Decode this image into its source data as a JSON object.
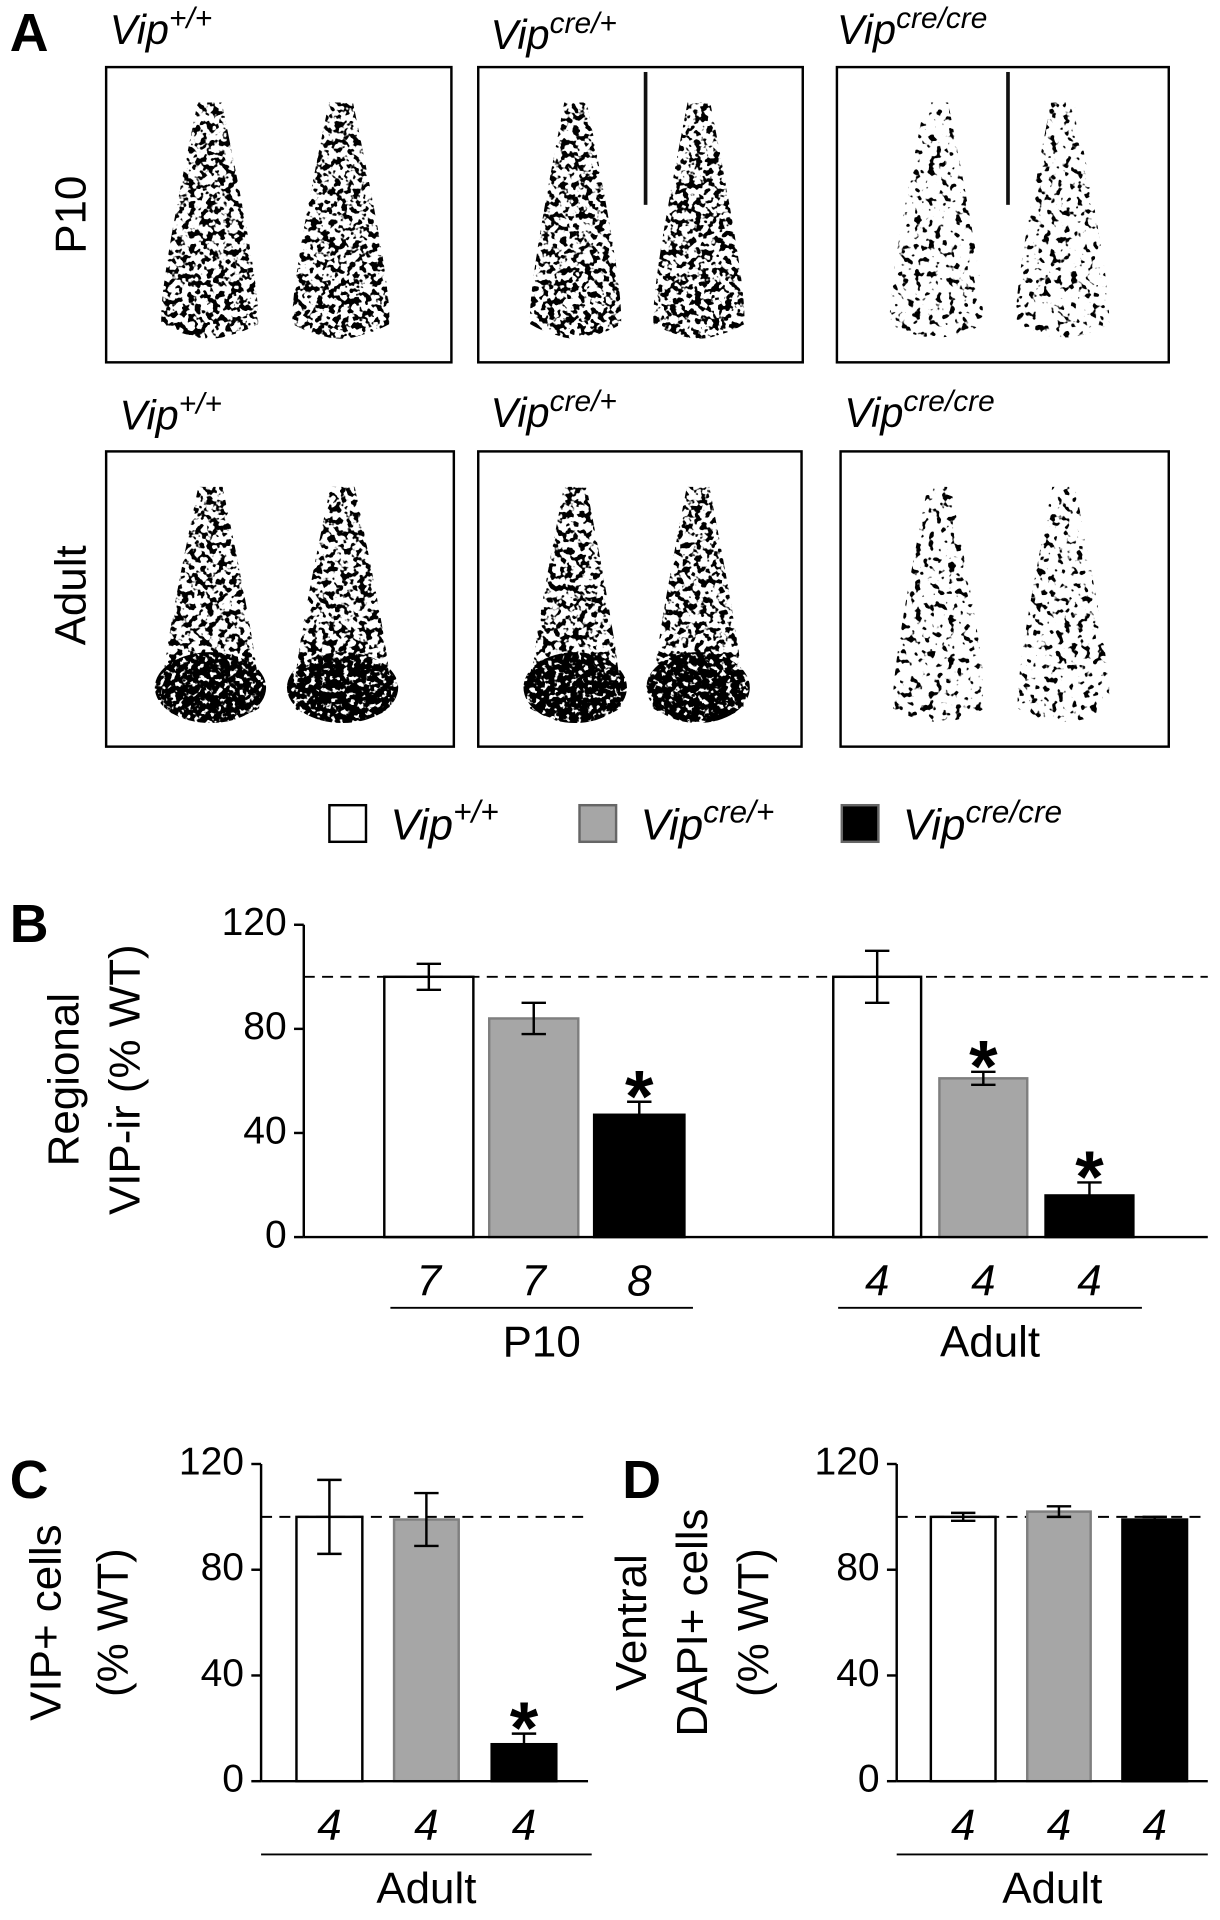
{
  "panel_labels": [
    "A",
    "B",
    "C",
    "D"
  ],
  "genotypes": [
    {
      "base": "Vip",
      "sup": "+/+"
    },
    {
      "base": "Vip",
      "sup": "cre/+"
    },
    {
      "base": "Vip",
      "sup": "cre/cre"
    }
  ],
  "panel_a": {
    "rows": [
      "P10",
      "Adult"
    ]
  },
  "chart_data": [
    {
      "type": "bar",
      "ylabel": [
        "Regional",
        "VIP-ir (% WT)"
      ],
      "groups": [
        "P10",
        "Adult"
      ],
      "series": [
        {
          "color": "#ffffff",
          "values": [
            100,
            100
          ],
          "errors": [
            5,
            10
          ],
          "n": [
            7,
            4
          ]
        },
        {
          "color": "#a6a6a6",
          "values": [
            84,
            61
          ],
          "errors": [
            6,
            2.5
          ],
          "n": [
            7,
            4
          ]
        },
        {
          "color": "#000000",
          "values": [
            47,
            16
          ],
          "errors": [
            5,
            5
          ],
          "n": [
            8,
            4
          ]
        }
      ],
      "ylim": [
        0,
        120
      ],
      "yticks": [
        0,
        40,
        80,
        120
      ],
      "reference_line": 100,
      "annotations": [
        {
          "text": "*",
          "series": 2,
          "group": 0
        },
        {
          "text": "*",
          "series": 1,
          "group": 1
        },
        {
          "text": "*",
          "series": 2,
          "group": 1
        }
      ]
    },
    {
      "type": "bar",
      "ylabel": [
        "VIP+ cells",
        "(% WT)"
      ],
      "groups": [
        "Adult"
      ],
      "series": [
        {
          "color": "#ffffff",
          "values": [
            100
          ],
          "errors": [
            14
          ],
          "n": [
            4
          ]
        },
        {
          "color": "#a6a6a6",
          "values": [
            99
          ],
          "errors": [
            10
          ],
          "n": [
            4
          ]
        },
        {
          "color": "#000000",
          "values": [
            14
          ],
          "errors": [
            4
          ],
          "n": [
            4
          ]
        }
      ],
      "ylim": [
        0,
        120
      ],
      "yticks": [
        0,
        40,
        80,
        120
      ],
      "reference_line": 100,
      "annotations": [
        {
          "text": "*",
          "series": 2,
          "group": 0
        }
      ]
    },
    {
      "type": "bar",
      "ylabel": [
        "Ventral",
        "DAPI+ cells",
        "(% WT)"
      ],
      "groups": [
        "Adult"
      ],
      "series": [
        {
          "color": "#ffffff",
          "values": [
            100
          ],
          "errors": [
            1.5
          ],
          "n": [
            4
          ]
        },
        {
          "color": "#a6a6a6",
          "values": [
            102
          ],
          "errors": [
            2
          ],
          "n": [
            4
          ]
        },
        {
          "color": "#000000",
          "values": [
            99
          ],
          "errors": [
            1
          ],
          "n": [
            4
          ]
        }
      ],
      "ylim": [
        0,
        120
      ],
      "yticks": [
        0,
        40,
        80,
        120
      ],
      "reference_line": 100,
      "annotations": []
    }
  ]
}
